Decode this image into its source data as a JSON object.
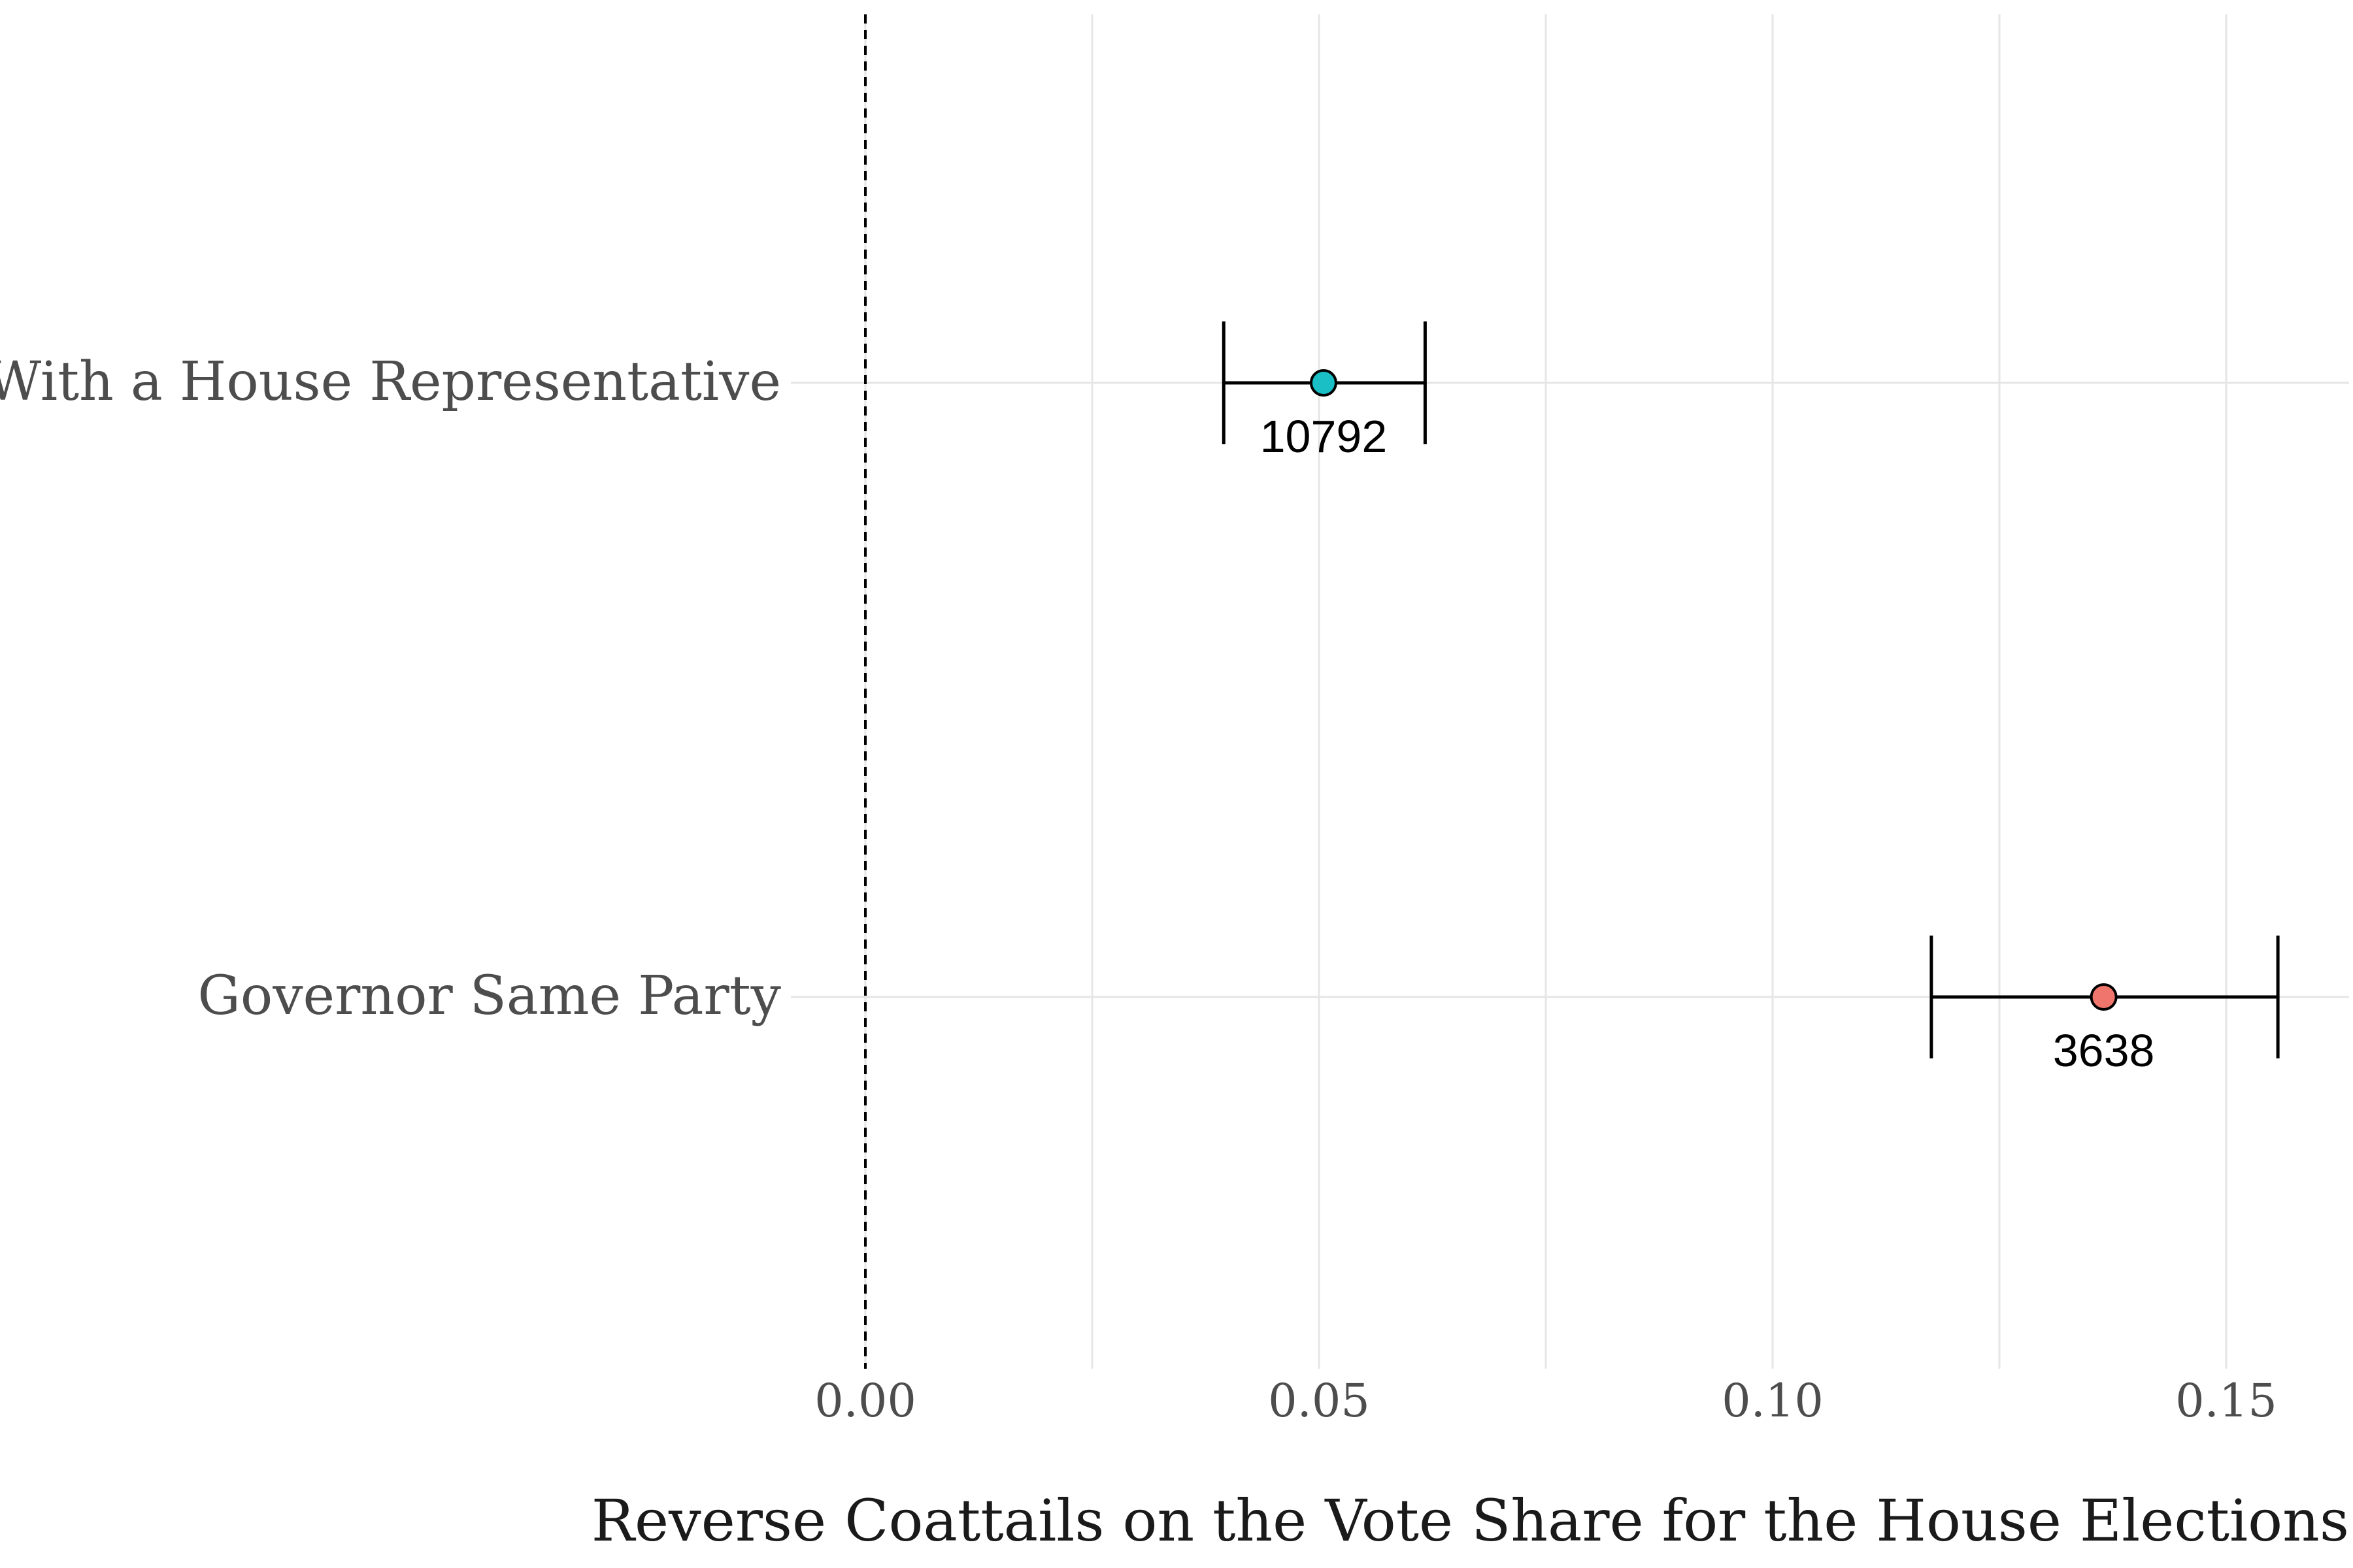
{
  "chart_data": {
    "type": "scatter",
    "subtype": "coefficient-plot",
    "title": "",
    "xlabel": "Reverse Coattails on the Vote Share for the House Elections",
    "ylabel": "",
    "xlim": [
      -0.0,
      0.164
    ],
    "x_ticks": [
      {
        "value": 0.0,
        "label": "0.00"
      },
      {
        "value": 0.05,
        "label": "0.05"
      },
      {
        "value": 0.1,
        "label": "0.10"
      },
      {
        "value": 0.15,
        "label": "0.15"
      }
    ],
    "x_minor_grid": [
      0.025,
      0.075,
      0.125
    ],
    "reference_line": {
      "value": 0.0,
      "style": "dashed"
    },
    "grid": true,
    "legend": "none",
    "categories": [
      "With a House Representative",
      "Governor Same Party"
    ],
    "points": [
      {
        "category": "With a House Representative",
        "estimate": 0.0505,
        "ci_low": 0.0395,
        "ci_high": 0.0617,
        "n_label": "10792",
        "color": "#19BFC4"
      },
      {
        "category": "Governor Same Party",
        "estimate": 0.1365,
        "ci_low": 0.1175,
        "ci_high": 0.1557,
        "n_label": "3638",
        "color": "#F0766D"
      }
    ]
  }
}
